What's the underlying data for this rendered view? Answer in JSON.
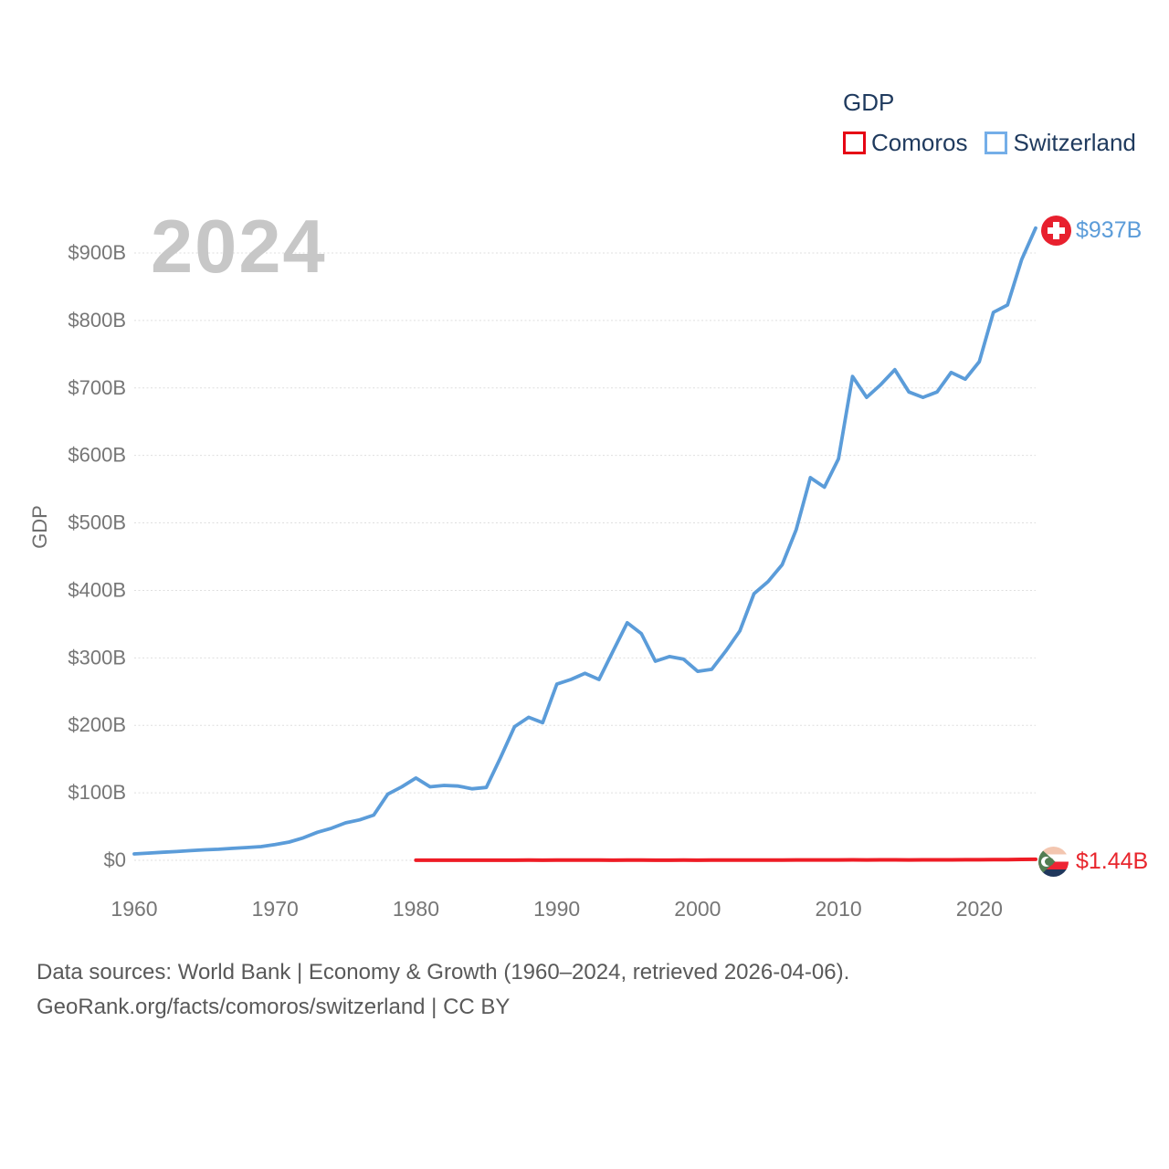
{
  "legend": {
    "title": "GDP",
    "items": [
      {
        "label": "Comoros",
        "color": "#e60515"
      },
      {
        "label": "Switzerland",
        "color": "#74aee8"
      }
    ]
  },
  "watermark": "2024",
  "axes": {
    "y_title": "GDP",
    "y_ticks": [
      {
        "value": 0,
        "label": "$0"
      },
      {
        "value": 100,
        "label": "$100B"
      },
      {
        "value": 200,
        "label": "$200B"
      },
      {
        "value": 300,
        "label": "$300B"
      },
      {
        "value": 400,
        "label": "$400B"
      },
      {
        "value": 500,
        "label": "$500B"
      },
      {
        "value": 600,
        "label": "$600B"
      },
      {
        "value": 700,
        "label": "$700B"
      },
      {
        "value": 800,
        "label": "$800B"
      },
      {
        "value": 900,
        "label": "$900B"
      }
    ],
    "x_ticks": [
      {
        "value": 1960,
        "label": "1960"
      },
      {
        "value": 1970,
        "label": "1970"
      },
      {
        "value": 1980,
        "label": "1980"
      },
      {
        "value": 1990,
        "label": "1990"
      },
      {
        "value": 2000,
        "label": "2000"
      },
      {
        "value": 2010,
        "label": "2010"
      },
      {
        "value": 2020,
        "label": "2020"
      }
    ]
  },
  "end_labels": {
    "switzerland": {
      "value": "$937B",
      "flag": "switzerland-flag"
    },
    "comoros": {
      "value": "$1.44B",
      "flag": "comoros-flag"
    }
  },
  "footer": {
    "line1": "Data sources: World Bank | Economy & Growth (1960–2024, retrieved 2026-04-06).",
    "line2": "GeoRank.org/facts/comoros/switzerland | CC BY"
  },
  "chart_data": {
    "type": "line",
    "title": "GDP",
    "ylabel": "GDP",
    "xlabel": "",
    "xlim": [
      1960,
      2024
    ],
    "ylim": [
      0,
      950
    ],
    "y_unit": "billions USD",
    "grid": true,
    "legend_position": "top-right",
    "series": [
      {
        "name": "Comoros",
        "color": "#ee1c25",
        "start_year": 1980,
        "end_label": "$1.44B",
        "values": [
          0.12,
          0.13,
          0.12,
          0.13,
          0.13,
          0.13,
          0.16,
          0.19,
          0.21,
          0.2,
          0.25,
          0.25,
          0.27,
          0.26,
          0.19,
          0.23,
          0.22,
          0.2,
          0.2,
          0.22,
          0.2,
          0.22,
          0.25,
          0.32,
          0.37,
          0.39,
          0.41,
          0.48,
          0.53,
          0.53,
          0.53,
          0.61,
          0.6,
          0.66,
          0.68,
          0.6,
          0.62,
          0.68,
          0.74,
          0.77,
          0.87,
          1.0,
          1.08,
          1.35,
          1.44
        ]
      },
      {
        "name": "Switzerland",
        "color": "#5b9cd9",
        "start_year": 1960,
        "end_label": "$937B",
        "values": [
          9.5,
          10.7,
          11.9,
          13.0,
          14.4,
          15.5,
          16.4,
          17.7,
          19.0,
          20.3,
          23.3,
          27.0,
          33.3,
          41.6,
          47.5,
          55.5,
          60.0,
          67.0,
          98.0,
          109.0,
          122.0,
          109.0,
          111.0,
          110.0,
          106.0,
          108.0,
          152.0,
          198.0,
          212.0,
          204.0,
          261.0,
          268.0,
          277.0,
          268.0,
          310.0,
          352.0,
          336.0,
          295.0,
          302.0,
          298.0,
          280.0,
          283.0,
          310.0,
          340.0,
          395.0,
          413.0,
          438.0,
          490.0,
          567.0,
          553.0,
          595.0,
          717.0,
          686.0,
          705.0,
          727.0,
          694.0,
          686.0,
          694.0,
          723.0,
          713.0,
          739.0,
          812.0,
          823.0,
          890.0,
          937.0
        ]
      }
    ]
  }
}
